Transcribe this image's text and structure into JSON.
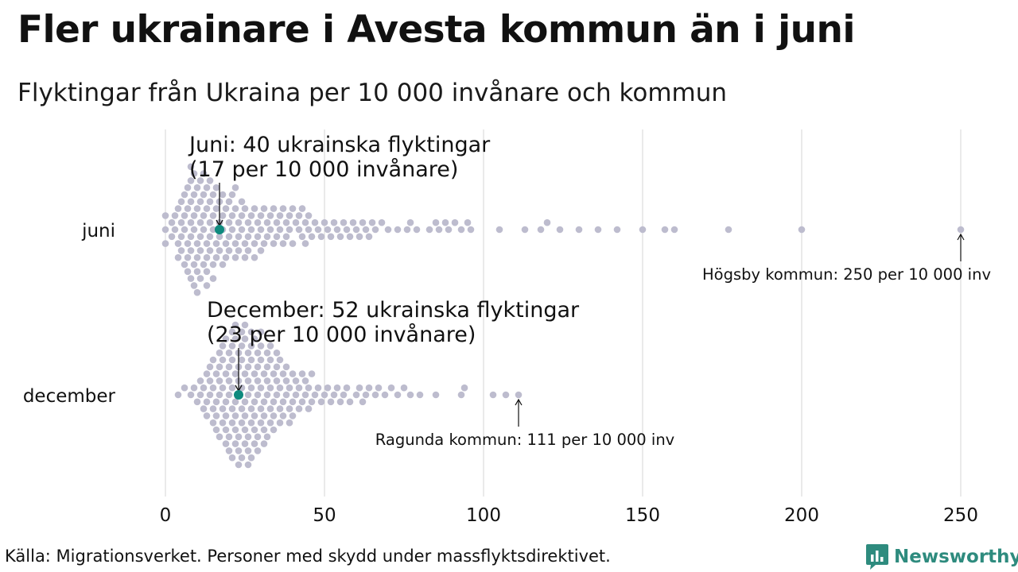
{
  "title": "Fler ukrainare i Avesta kommun än i juni",
  "subtitle": "Flyktingar från Ukraina per 10 000 invånare och kommun",
  "source": "Källa: Migrationsverket. Personer med skydd under massflyktsdirektivet.",
  "brand": {
    "name": "Newsworthy",
    "color": "#2e8b7e"
  },
  "colors": {
    "dot": "#bdbcce",
    "highlight": "#0f8a7e",
    "grid": "#d4d4d4"
  },
  "chart_data": {
    "type": "scatter",
    "style": "beeswarm",
    "xlim": [
      0,
      260
    ],
    "x_ticks": [
      0,
      50,
      100,
      150,
      200,
      250
    ],
    "grid": true,
    "categories": [
      "juni",
      "december"
    ],
    "series": [
      {
        "name": "juni",
        "highlight": {
          "value": 17,
          "label_line1": "Juni: 40 ukrainska flyktingar",
          "label_line2": "(17 per 10 000 invånare)"
        },
        "extreme": {
          "value": 250,
          "label": "Högsby kommun: 250 per 10 000 inv"
        },
        "values": [
          0,
          0,
          0,
          2,
          2,
          3,
          3,
          4,
          4,
          4,
          5,
          5,
          5,
          5,
          6,
          6,
          6,
          6,
          7,
          7,
          7,
          7,
          7,
          8,
          8,
          8,
          8,
          8,
          8,
          8,
          9,
          9,
          9,
          9,
          9,
          9,
          10,
          10,
          10,
          10,
          10,
          10,
          11,
          11,
          11,
          11,
          11,
          11,
          12,
          12,
          12,
          12,
          12,
          13,
          13,
          13,
          13,
          13,
          13,
          14,
          14,
          14,
          14,
          14,
          15,
          15,
          15,
          15,
          15,
          16,
          16,
          16,
          16,
          17,
          17,
          17,
          17,
          18,
          18,
          18,
          18,
          19,
          19,
          19,
          20,
          20,
          20,
          20,
          21,
          21,
          21,
          22,
          22,
          22,
          22,
          23,
          23,
          23,
          24,
          24,
          24,
          25,
          25,
          25,
          26,
          26,
          26,
          27,
          27,
          28,
          28,
          28,
          29,
          29,
          30,
          30,
          30,
          31,
          31,
          32,
          32,
          33,
          33,
          34,
          34,
          35,
          35,
          36,
          36,
          37,
          37,
          38,
          38,
          39,
          39,
          40,
          40,
          41,
          42,
          42,
          43,
          43,
          44,
          44,
          45,
          45,
          46,
          47,
          48,
          49,
          50,
          51,
          52,
          53,
          54,
          55,
          56,
          57,
          58,
          59,
          60,
          61,
          62,
          63,
          64,
          65,
          66,
          68,
          70,
          73,
          76,
          77,
          79,
          83,
          85,
          86,
          88,
          89,
          91,
          93,
          95,
          96,
          105,
          113,
          118,
          120,
          124,
          130,
          136,
          142,
          150,
          157,
          160,
          177,
          200,
          250
        ]
      },
      {
        "name": "december",
        "highlight": {
          "value": 23,
          "label_line1": "December: 52 ukrainska flyktingar",
          "label_line2": "(23 per 10 000 invånare)"
        },
        "extreme": {
          "value": 111,
          "label": "Ragunda kommun: 111 per 10 000 inv"
        },
        "values": [
          4,
          6,
          8,
          9,
          10,
          11,
          11,
          12,
          12,
          13,
          13,
          13,
          14,
          14,
          14,
          15,
          15,
          15,
          15,
          16,
          16,
          16,
          16,
          17,
          17,
          17,
          17,
          17,
          18,
          18,
          18,
          18,
          18,
          19,
          19,
          19,
          19,
          19,
          19,
          20,
          20,
          20,
          20,
          20,
          20,
          21,
          21,
          21,
          21,
          21,
          21,
          21,
          22,
          22,
          22,
          22,
          22,
          22,
          22,
          23,
          23,
          23,
          23,
          23,
          23,
          23,
          24,
          24,
          24,
          24,
          24,
          24,
          24,
          25,
          25,
          25,
          25,
          25,
          25,
          25,
          26,
          26,
          26,
          26,
          26,
          26,
          26,
          27,
          27,
          27,
          27,
          27,
          27,
          27,
          28,
          28,
          28,
          28,
          28,
          28,
          29,
          29,
          29,
          29,
          29,
          29,
          30,
          30,
          30,
          30,
          30,
          30,
          31,
          31,
          31,
          31,
          31,
          32,
          32,
          32,
          32,
          32,
          33,
          33,
          33,
          33,
          33,
          34,
          34,
          34,
          34,
          35,
          35,
          35,
          35,
          36,
          36,
          36,
          36,
          37,
          37,
          37,
          38,
          38,
          38,
          39,
          39,
          39,
          40,
          40,
          40,
          41,
          41,
          42,
          42,
          43,
          43,
          44,
          44,
          45,
          45,
          46,
          46,
          47,
          48,
          49,
          50,
          51,
          52,
          53,
          54,
          55,
          56,
          57,
          58,
          60,
          61,
          62,
          63,
          64,
          66,
          67,
          69,
          71,
          73,
          75,
          77,
          80,
          85,
          93,
          94,
          103,
          107,
          111
        ]
      }
    ]
  }
}
